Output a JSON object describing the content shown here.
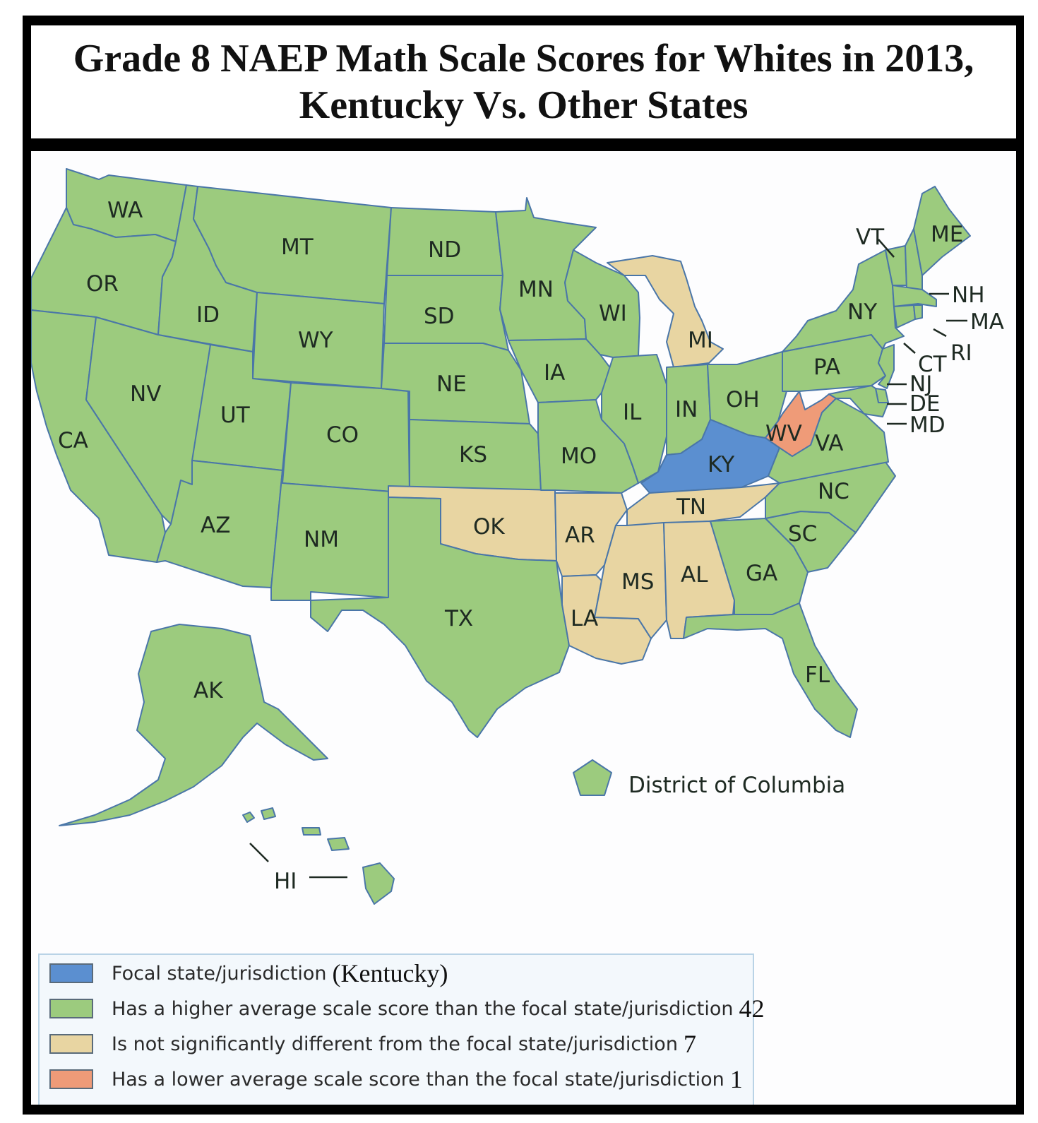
{
  "title": {
    "line1": "Grade 8 NAEP Math Scale Scores for Whites in 2013,",
    "line2": "Kentucky Vs. Other States"
  },
  "colors": {
    "focal": "#5b8fd0",
    "higher": "#9ccb7e",
    "not_different": "#e8d5a2",
    "lower": "#ef9b78"
  },
  "states": {
    "WA": {
      "label": "WA",
      "category": "higher"
    },
    "OR": {
      "label": "OR",
      "category": "higher"
    },
    "CA": {
      "label": "CA",
      "category": "higher"
    },
    "ID": {
      "label": "ID",
      "category": "higher"
    },
    "NV": {
      "label": "NV",
      "category": "higher"
    },
    "MT": {
      "label": "MT",
      "category": "higher"
    },
    "WY": {
      "label": "WY",
      "category": "higher"
    },
    "UT": {
      "label": "UT",
      "category": "higher"
    },
    "AZ": {
      "label": "AZ",
      "category": "higher"
    },
    "CO": {
      "label": "CO",
      "category": "higher"
    },
    "NM": {
      "label": "NM",
      "category": "higher"
    },
    "ND": {
      "label": "ND",
      "category": "higher"
    },
    "SD": {
      "label": "SD",
      "category": "higher"
    },
    "NE": {
      "label": "NE",
      "category": "higher"
    },
    "KS": {
      "label": "KS",
      "category": "higher"
    },
    "OK": {
      "label": "OK",
      "category": "not_different"
    },
    "TX": {
      "label": "TX",
      "category": "higher"
    },
    "MN": {
      "label": "MN",
      "category": "higher"
    },
    "IA": {
      "label": "IA",
      "category": "higher"
    },
    "MO": {
      "label": "MO",
      "category": "higher"
    },
    "AR": {
      "label": "AR",
      "category": "not_different"
    },
    "LA": {
      "label": "LA",
      "category": "not_different"
    },
    "WI": {
      "label": "WI",
      "category": "higher"
    },
    "IL": {
      "label": "IL",
      "category": "higher"
    },
    "MI": {
      "label": "MI",
      "category": "not_different"
    },
    "IN": {
      "label": "IN",
      "category": "higher"
    },
    "OH": {
      "label": "OH",
      "category": "higher"
    },
    "KY": {
      "label": "KY",
      "category": "focal"
    },
    "TN": {
      "label": "TN",
      "category": "not_different"
    },
    "MS": {
      "label": "MS",
      "category": "not_different"
    },
    "AL": {
      "label": "AL",
      "category": "not_different"
    },
    "GA": {
      "label": "GA",
      "category": "higher"
    },
    "FL": {
      "label": "FL",
      "category": "higher"
    },
    "SC": {
      "label": "SC",
      "category": "higher"
    },
    "NC": {
      "label": "NC",
      "category": "higher"
    },
    "VA": {
      "label": "VA",
      "category": "higher"
    },
    "WV": {
      "label": "WV",
      "category": "lower"
    },
    "PA": {
      "label": "PA",
      "category": "higher"
    },
    "NY": {
      "label": "NY",
      "category": "higher"
    },
    "VT": {
      "label": "VT",
      "category": "higher"
    },
    "NH": {
      "label": "NH",
      "category": "higher"
    },
    "ME": {
      "label": "ME",
      "category": "higher"
    },
    "MA": {
      "label": "MA",
      "category": "higher"
    },
    "RI": {
      "label": "RI",
      "category": "higher"
    },
    "CT": {
      "label": "CT",
      "category": "higher"
    },
    "NJ": {
      "label": "NJ",
      "category": "higher"
    },
    "DE": {
      "label": "DE",
      "category": "higher"
    },
    "MD": {
      "label": "MD",
      "category": "higher"
    },
    "AK": {
      "label": "AK",
      "category": "higher"
    },
    "HI": {
      "label": "HI",
      "category": "higher"
    },
    "DC": {
      "label": "District of Columbia",
      "category": "higher"
    }
  },
  "legend": {
    "focal": {
      "text": "Focal  state/jurisdiction",
      "extra": "(Kentucky)"
    },
    "higher": {
      "text": "Has a higher average scale score than the focal state/jurisdiction",
      "extra": "42"
    },
    "not_different": {
      "text": "Is not significantly different from the focal  state/jurisdiction",
      "extra": "7"
    },
    "lower": {
      "text": "Has a lower average scale score than the focal state/jurisdiction",
      "extra": "1"
    }
  }
}
